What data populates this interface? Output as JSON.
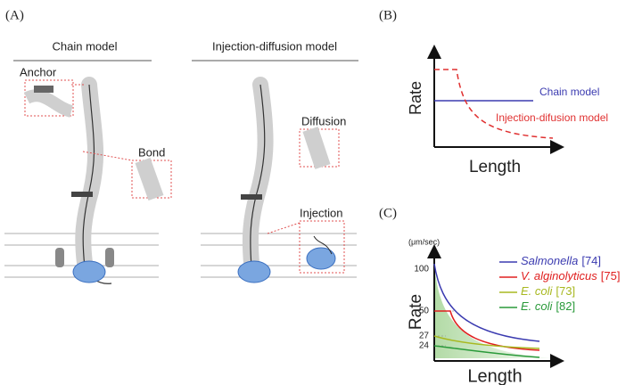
{
  "panel_a": {
    "label": "(A)",
    "left_title": "Chain model",
    "right_title": "Injection-diffusion model",
    "callouts": [
      "Anchor",
      "Bond",
      "Diffusion",
      "Injection"
    ]
  },
  "panel_b": {
    "label": "(B)",
    "y_label": "Rate",
    "x_label": "Length",
    "curves": [
      "Chain model",
      "Injection-difusion model"
    ]
  },
  "panel_c": {
    "label": "(C)",
    "unit": "(μm/sec)",
    "y_label": "Rate",
    "x_label": "Length",
    "yticks": [
      100,
      50,
      27,
      24
    ],
    "legend": [
      {
        "name": "Salmonella",
        "ref": "[74]",
        "color": "#3b3bb0"
      },
      {
        "name": "V. alginolyticus",
        "ref": "[75]",
        "color": "#e02020"
      },
      {
        "name": "E. coli",
        "ref": "[73]",
        "color": "#a8b820"
      },
      {
        "name": "E. coli",
        "ref": "[82]",
        "color": "#2a9a3a"
      }
    ]
  }
}
